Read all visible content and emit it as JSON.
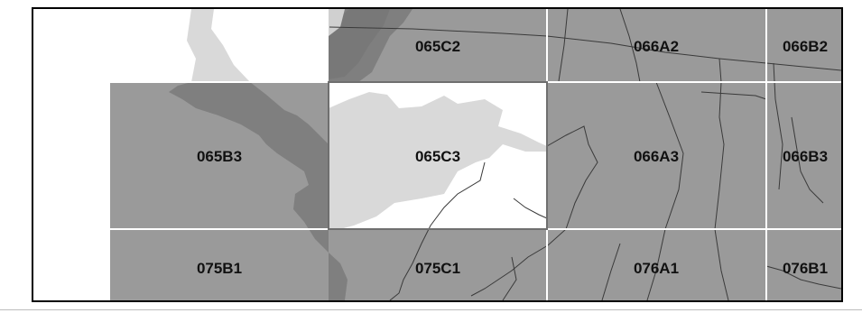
{
  "map": {
    "tiles": [
      {
        "id": "065C2",
        "label": "065C2",
        "state": "default"
      },
      {
        "id": "066A2",
        "label": "066A2",
        "state": "default"
      },
      {
        "id": "066B2",
        "label": "066B2",
        "state": "default"
      },
      {
        "id": "065B3",
        "label": "065B3",
        "state": "default"
      },
      {
        "id": "065C3",
        "label": "065C3",
        "state": "selected"
      },
      {
        "id": "066A3",
        "label": "066A3",
        "state": "default"
      },
      {
        "id": "066B3",
        "label": "066B3",
        "state": "default"
      },
      {
        "id": "075B1",
        "label": "075B1",
        "state": "default"
      },
      {
        "id": "075C1",
        "label": "075C1",
        "state": "default"
      },
      {
        "id": "076A1",
        "label": "076A1",
        "state": "default"
      },
      {
        "id": "076B1",
        "label": "076B1",
        "state": "default"
      }
    ],
    "colors": {
      "tile_fill": "#9a9a9a",
      "selected_fill": "#ffffff",
      "water": "#d9d9d9",
      "water_dark": "#7f7f7f",
      "grid_line": "#ffffff",
      "selected_border": "#6f6f6f",
      "road": "#3a3a3a",
      "frame": "#000000"
    }
  }
}
